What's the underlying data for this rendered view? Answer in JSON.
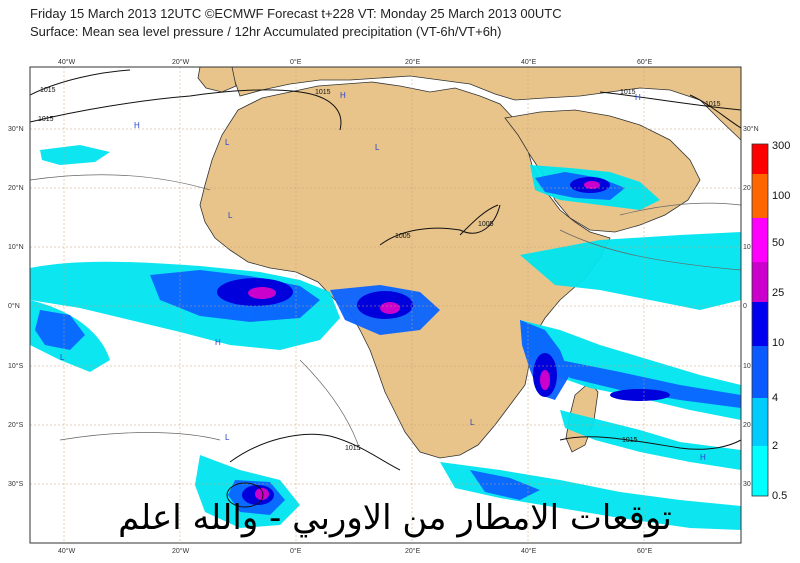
{
  "header": {
    "line1": "Friday 15 March 2013 12UTC ©ECMWF Forecast t+228 VT: Monday 25 March 2013 00UTC",
    "line2": "Surface: Mean sea level pressure / 12hr Accumulated precipitation (VT-6h/VT+6h)"
  },
  "lon_ticks_top": [
    "40°W",
    "20°W",
    "0°E",
    "20°E",
    "40°E",
    "60°E"
  ],
  "lon_ticks_bottom": [
    "40°W",
    "20°W",
    "0°E",
    "20°E",
    "40°E",
    "60°E"
  ],
  "lat_ticks_left": [
    "30°N",
    "20°N",
    "10°N",
    "0°N",
    "10°S",
    "20°S",
    "30°S"
  ],
  "lat_ticks_right": [
    "30°N",
    "20",
    "10",
    "0",
    "10",
    "20",
    "30"
  ],
  "isobar_labels": [
    "1015",
    "1015",
    "1015",
    "1015",
    "1005",
    "1005",
    "1015",
    "1015",
    "1015"
  ],
  "pressure_centers": [
    "H",
    "H",
    "H",
    "L",
    "L",
    "L",
    "L",
    "H",
    "L",
    "L",
    "H"
  ],
  "legend": {
    "labels": [
      "300",
      "100",
      "50",
      "25",
      "10",
      "4",
      "2",
      "0.5"
    ],
    "colors": [
      "#ff0000",
      "#ff6600",
      "#ff00ff",
      "#cc00cc",
      "#0000ee",
      "#0a5aff",
      "#00ccff",
      "#00ffff"
    ]
  },
  "colors": {
    "land": "#e8c48a",
    "sea": "#ffffff",
    "precip_light": "#00e5f0",
    "precip_mid": "#0a64ff",
    "precip_heavy": "#0000dd",
    "precip_extreme": "#cc00cc"
  },
  "overlay_text": "توقعات الامطار من الاوربي - والله اعلم"
}
